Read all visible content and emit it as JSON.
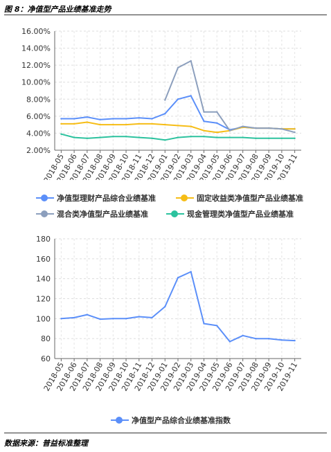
{
  "figure": {
    "title": "图 8：净值型产品业绩基准走势",
    "source": "数据来源：普益标准整理"
  },
  "chart_data": [
    {
      "type": "line",
      "categories": [
        "2018-05",
        "2018-06",
        "2018-07",
        "2018-08",
        "2018-09",
        "2018-10",
        "2018-11",
        "2018-12",
        "2019-01",
        "2019-02",
        "2019-03",
        "2019-04",
        "2019-05",
        "2019-06",
        "2019-07",
        "2019-08",
        "2019-09",
        "2019-10",
        "2019-11"
      ],
      "ylim": [
        0.02,
        0.16
      ],
      "yticks": [
        "2.00%",
        "4.00%",
        "6.00%",
        "8.00%",
        "10.00%",
        "12.00%",
        "14.00%",
        "16.00%"
      ],
      "grid": true,
      "legend_position": "bottom",
      "series": [
        {
          "name": "净值型理财产品综合业绩基准",
          "color": "#5b8ff9",
          "values": [
            0.057,
            0.057,
            0.059,
            0.056,
            0.057,
            0.057,
            0.058,
            0.057,
            0.063,
            0.08,
            0.084,
            0.054,
            0.052,
            0.044,
            0.047,
            0.046,
            0.046,
            0.045,
            0.045
          ]
        },
        {
          "name": "固定收益类净值型产品业绩基准",
          "color": "#f6bd16",
          "values": [
            0.051,
            0.051,
            0.053,
            0.05,
            0.05,
            0.05,
            0.051,
            0.051,
            0.05,
            0.049,
            0.048,
            0.043,
            0.041,
            0.043,
            0.047,
            0.046,
            0.046,
            0.045,
            0.045
          ]
        },
        {
          "name": "混合类净值型产品业绩基准",
          "color": "#8c9fbd",
          "values": [
            null,
            null,
            null,
            null,
            null,
            null,
            null,
            null,
            0.079,
            0.117,
            0.125,
            0.065,
            0.065,
            0.043,
            0.048,
            0.046,
            0.046,
            0.045,
            0.041
          ]
        },
        {
          "name": "现金管理类净值型产品业绩基准",
          "color": "#2cc29e",
          "values": [
            0.039,
            0.035,
            0.034,
            0.035,
            0.036,
            0.036,
            0.035,
            0.034,
            0.032,
            0.035,
            0.036,
            0.036,
            0.035,
            0.035,
            0.035,
            0.034,
            0.034,
            0.034,
            0.034
          ]
        }
      ]
    },
    {
      "type": "line",
      "categories": [
        "2018-05",
        "2018-06",
        "2018-07",
        "2018-08",
        "2018-09",
        "2018-10",
        "2018-11",
        "2018-12",
        "2019-01",
        "2019-02",
        "2019-03",
        "2019-04",
        "2019-05",
        "2019-06",
        "2019-07",
        "2019-08",
        "2019-09",
        "2019-10",
        "2019-11"
      ],
      "ylim": [
        60,
        180
      ],
      "yticks": [
        "60",
        "80",
        "100",
        "120",
        "140",
        "160",
        "180"
      ],
      "grid": true,
      "legend_position": "bottom",
      "series": [
        {
          "name": "净值型产品综合业绩基准指数",
          "color": "#5b8ff9",
          "values": [
            100,
            101,
            104,
            99.5,
            100,
            100,
            102,
            101,
            112,
            141,
            147,
            95,
            93,
            77,
            83,
            80,
            80,
            78.5,
            78
          ]
        }
      ]
    }
  ]
}
